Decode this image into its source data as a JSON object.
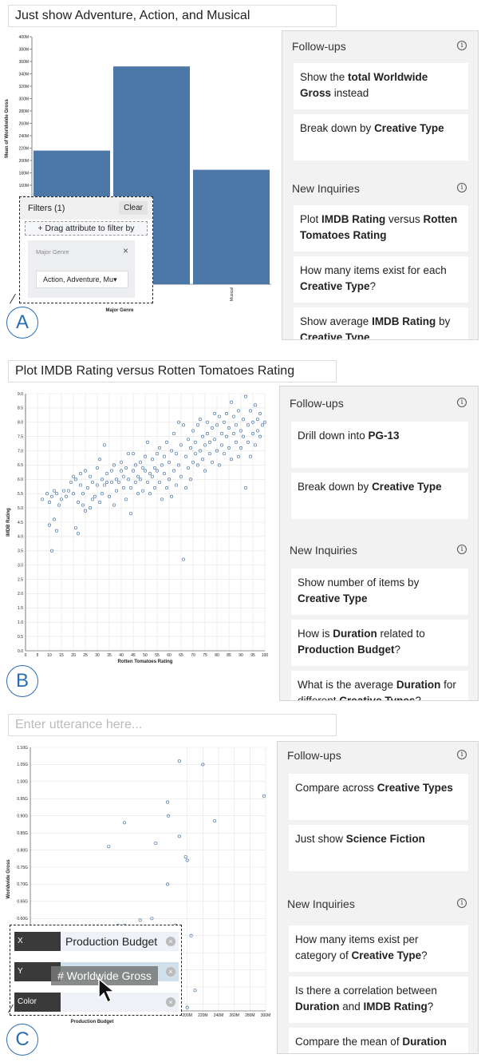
{
  "panelA": {
    "utterance": "Just show Adventure, Action, and Musical",
    "badge": "A",
    "filters": {
      "title": "Filters (1)",
      "clear": "Clear",
      "drag": "+ Drag attribute to filter by",
      "field": "Major Genre",
      "close": "×",
      "selected": "Action, Adventure, Mu",
      "caret": "▾"
    },
    "side": {
      "followups_title": "Follow-ups",
      "new_title": "New Inquiries",
      "info": "i",
      "followups": [
        [
          "Show the ",
          "total Worldwide Gross",
          " instead"
        ],
        [
          "Break down by ",
          "Creative Type",
          ""
        ]
      ],
      "inquiries": [
        [
          "Plot ",
          "IMDB Rating",
          " versus ",
          "Rotten Tomatoes Rating",
          ""
        ],
        [
          "How many items exist for each ",
          "Creative Type",
          "?"
        ],
        [
          "Show average ",
          "IMDB Rating",
          " by ",
          "Creative Type",
          ""
        ]
      ]
    }
  },
  "panelB": {
    "utterance": "Plot IMDB Rating versus Rotten Tomatoes Rating",
    "badge": "B",
    "side": {
      "followups_title": "Follow-ups",
      "new_title": "New Inquiries",
      "info": "i",
      "followups": [
        [
          "Drill down into ",
          "PG-13",
          ""
        ],
        [
          "Break down by ",
          "Creative Type",
          ""
        ]
      ],
      "inquiries": [
        [
          "Show number of items by ",
          "Creative Type",
          ""
        ],
        [
          "How is ",
          "Duration",
          " related to ",
          "Production Budget",
          "?"
        ],
        [
          "What is the average ",
          "Duration",
          " for different ",
          "Creative Types",
          "?"
        ]
      ]
    }
  },
  "panelC": {
    "utterance": "",
    "placeholder": "Enter utterance here...",
    "badge": "C",
    "encodings": {
      "x_key": "X",
      "x_val": "Production Budget",
      "y_key": "Y",
      "y_val": "",
      "color_key": "Color",
      "color_val": "",
      "dragging": "# Worldwide Gross",
      "remove": "×"
    },
    "side": {
      "followups_title": "Follow-ups",
      "new_title": "New Inquiries",
      "info": "i",
      "followups": [
        [
          "Compare across ",
          "Creative Types",
          ""
        ],
        [
          "Just show ",
          "Science Fiction",
          ""
        ]
      ],
      "inquiries": [
        [
          "How many items exist per category of ",
          "Creative Type",
          "?"
        ],
        [
          "Is there a correlation between ",
          "Duration",
          " and ",
          "IMDB Rating",
          "?"
        ],
        [
          "Compare the mean of ",
          "Duration",
          " across ",
          "Creative Types",
          ""
        ]
      ]
    }
  },
  "colors": {
    "bar": "#4c78a8",
    "point": "#4c78a8",
    "badge": "#2b6cb0"
  },
  "chart_data": [
    {
      "type": "bar",
      "categories": [
        "Action",
        "Adventure",
        "Musical"
      ],
      "values": [
        216000000,
        352000000,
        185000000
      ],
      "xlabel": "Major Genre",
      "ylabel": "Mean of Worldwide Gross",
      "ylim": [
        0,
        400000000
      ],
      "y_ticks": [
        "0M",
        "20M",
        "40M",
        "60M",
        "80M",
        "100M",
        "120M",
        "140M",
        "160M",
        "180M",
        "200M",
        "220M",
        "240M",
        "260M",
        "280M",
        "300M",
        "320M",
        "340M",
        "360M",
        "380M",
        "400M"
      ],
      "visible_x_tick_labels": [
        "Musical"
      ],
      "grid": false
    },
    {
      "type": "scatter",
      "xlabel": "Rotten Tomatoes Rating",
      "ylabel": "IMDB Rating",
      "xlim": [
        0,
        100
      ],
      "ylim": [
        0,
        9
      ],
      "x_ticks": [
        "0",
        "5",
        "10",
        "15",
        "20",
        "25",
        "30",
        "35",
        "40",
        "45",
        "50",
        "55",
        "60",
        "65",
        "70",
        "75",
        "80",
        "85",
        "90",
        "95",
        "100"
      ],
      "y_ticks": [
        "0.0",
        "0.5",
        "1.0",
        "1.5",
        "2.0",
        "2.5",
        "3.0",
        "3.5",
        "4.0",
        "4.5",
        "5.0",
        "5.5",
        "6.0",
        "6.5",
        "7.0",
        "7.5",
        "8.0",
        "8.5",
        "9.0"
      ],
      "grid": true,
      "points": [
        [
          7,
          5.3
        ],
        [
          9,
          5.5
        ],
        [
          10,
          5.2
        ],
        [
          10,
          4.4
        ],
        [
          11,
          5.4
        ],
        [
          11,
          3.5
        ],
        [
          12,
          5.6
        ],
        [
          12,
          4.6
        ],
        [
          13,
          4.2
        ],
        [
          13,
          5.5
        ],
        [
          14,
          5.1
        ],
        [
          15,
          5.3
        ],
        [
          16,
          5.6
        ],
        [
          17,
          5.4
        ],
        [
          18,
          5.6
        ],
        [
          19,
          5.9
        ],
        [
          20,
          6.1
        ],
        [
          20,
          5.5
        ],
        [
          21,
          6.0
        ],
        [
          21,
          4.3
        ],
        [
          22,
          5.2
        ],
        [
          22,
          4.1
        ],
        [
          23,
          6.2
        ],
        [
          23,
          5.8
        ],
        [
          24,
          5.5
        ],
        [
          24,
          5.1
        ],
        [
          25,
          4.9
        ],
        [
          25,
          6.3
        ],
        [
          26,
          5.7
        ],
        [
          27,
          5.0
        ],
        [
          27,
          6.1
        ],
        [
          28,
          5.3
        ],
        [
          28,
          5.9
        ],
        [
          29,
          5.4
        ],
        [
          30,
          6.4
        ],
        [
          30,
          5.8
        ],
        [
          31,
          6.7
        ],
        [
          31,
          5.2
        ],
        [
          32,
          6.0
        ],
        [
          32,
          5.5
        ],
        [
          33,
          7.2
        ],
        [
          33,
          5.8
        ],
        [
          34,
          5.9
        ],
        [
          34,
          6.2
        ],
        [
          35,
          5.4
        ],
        [
          36,
          5.9
        ],
        [
          36,
          6.3
        ],
        [
          37,
          5.1
        ],
        [
          37,
          6.5
        ],
        [
          38,
          6.0
        ],
        [
          38,
          5.6
        ],
        [
          39,
          5.9
        ],
        [
          40,
          6.3
        ],
        [
          40,
          6.6
        ],
        [
          41,
          5.7
        ],
        [
          41,
          6.1
        ],
        [
          42,
          6.4
        ],
        [
          42,
          5.3
        ],
        [
          43,
          6.0
        ],
        [
          43,
          6.9
        ],
        [
          44,
          4.8
        ],
        [
          44,
          5.7
        ],
        [
          45,
          6.3
        ],
        [
          45,
          6.9
        ],
        [
          46,
          5.9
        ],
        [
          46,
          6.5
        ],
        [
          47,
          6.1
        ],
        [
          47,
          5.5
        ],
        [
          48,
          6.6
        ],
        [
          48,
          6.0
        ],
        [
          49,
          6.4
        ],
        [
          49,
          5.6
        ],
        [
          50,
          6.3
        ],
        [
          50,
          6.8
        ],
        [
          51,
          5.9
        ],
        [
          51,
          7.3
        ],
        [
          52,
          6.2
        ],
        [
          52,
          5.5
        ],
        [
          53,
          6.7
        ],
        [
          53,
          6.1
        ],
        [
          54,
          6.4
        ],
        [
          54,
          5.7
        ],
        [
          55,
          6.9
        ],
        [
          55,
          6.3
        ],
        [
          56,
          5.9
        ],
        [
          56,
          7.1
        ],
        [
          57,
          6.5
        ],
        [
          57,
          5.3
        ],
        [
          58,
          6.8
        ],
        [
          58,
          6.2
        ],
        [
          59,
          5.7
        ],
        [
          59,
          7.3
        ],
        [
          60,
          6.0
        ],
        [
          60,
          6.6
        ],
        [
          61,
          7.0
        ],
        [
          61,
          5.4
        ],
        [
          62,
          6.3
        ],
        [
          62,
          7.6
        ],
        [
          63,
          6.9
        ],
        [
          63,
          5.8
        ],
        [
          64,
          8.0
        ],
        [
          64,
          6.5
        ],
        [
          65,
          7.2
        ],
        [
          65,
          6.1
        ],
        [
          66,
          3.2
        ],
        [
          66,
          7.9
        ],
        [
          67,
          6.8
        ],
        [
          67,
          5.7
        ],
        [
          68,
          7.4
        ],
        [
          68,
          6.4
        ],
        [
          69,
          7.1
        ],
        [
          69,
          6.0
        ],
        [
          70,
          7.7
        ],
        [
          70,
          6.6
        ],
        [
          71,
          7.3
        ],
        [
          71,
          6.9
        ],
        [
          72,
          7.9
        ],
        [
          72,
          6.5
        ],
        [
          73,
          8.1
        ],
        [
          73,
          7.0
        ],
        [
          74,
          6.7
        ],
        [
          74,
          7.5
        ],
        [
          75,
          7.2
        ],
        [
          75,
          6.3
        ],
        [
          76,
          8.0
        ],
        [
          76,
          7.6
        ],
        [
          77,
          6.9
        ],
        [
          77,
          7.3
        ],
        [
          78,
          7.8
        ],
        [
          78,
          6.6
        ],
        [
          79,
          8.3
        ],
        [
          79,
          7.4
        ],
        [
          80,
          7.0
        ],
        [
          80,
          7.9
        ],
        [
          81,
          8.2
        ],
        [
          81,
          6.5
        ],
        [
          82,
          7.6
        ],
        [
          82,
          7.2
        ],
        [
          83,
          8.0
        ],
        [
          83,
          6.9
        ],
        [
          84,
          7.5
        ],
        [
          84,
          8.3
        ],
        [
          85,
          7.1
        ],
        [
          85,
          7.8
        ],
        [
          86,
          8.7
        ],
        [
          86,
          6.7
        ],
        [
          87,
          7.6
        ],
        [
          87,
          8.2
        ],
        [
          88,
          7.3
        ],
        [
          88,
          7.9
        ],
        [
          89,
          8.4
        ],
        [
          89,
          6.8
        ],
        [
          90,
          7.7
        ],
        [
          90,
          7.1
        ],
        [
          91,
          8.1
        ],
        [
          91,
          7.5
        ],
        [
          92,
          8.9
        ],
        [
          92,
          5.7
        ],
        [
          93,
          7.9
        ],
        [
          93,
          7.3
        ],
        [
          94,
          8.4
        ],
        [
          94,
          6.8
        ],
        [
          95,
          7.6
        ],
        [
          95,
          8.0
        ],
        [
          96,
          7.2
        ],
        [
          96,
          8.6
        ],
        [
          97,
          7.7
        ],
        [
          97,
          8.1
        ],
        [
          98,
          8.3
        ],
        [
          98,
          7.5
        ],
        [
          99,
          7.9
        ],
        [
          100,
          8.0
        ]
      ]
    },
    {
      "type": "scatter",
      "xlabel": "Production Budget",
      "ylabel": "Worldwide Gross",
      "ylim": [
        0,
        1100000000
      ],
      "xlim": [
        0,
        300000000
      ],
      "y_ticks": [
        "0.35G",
        "0.40G",
        "0.45G",
        "0.50G",
        "0.55G",
        "0.60G",
        "0.65G",
        "0.70G",
        "0.75G",
        "0.80G",
        "0.85G",
        "0.90G",
        "0.95G",
        "1.00G",
        "1.05G",
        "1.10G"
      ],
      "x_ticks": [
        "200M",
        "220M",
        "240M",
        "260M",
        "280M",
        "300M"
      ],
      "grid": true,
      "points": [
        [
          190000000,
          1060000000
        ],
        [
          220000000,
          1050000000
        ],
        [
          298000000,
          958000000
        ],
        [
          175000000,
          940000000
        ],
        [
          176000000,
          900000000
        ],
        [
          120000000,
          880000000
        ],
        [
          235000000,
          885000000
        ],
        [
          190000000,
          840000000
        ],
        [
          198000000,
          780000000
        ],
        [
          200000000,
          770000000
        ],
        [
          160000000,
          820000000
        ],
        [
          100000000,
          810000000
        ],
        [
          175000000,
          700000000
        ],
        [
          140000000,
          595000000
        ],
        [
          155000000,
          600000000
        ],
        [
          185000000,
          580000000
        ],
        [
          112000000,
          580000000
        ],
        [
          120000000,
          580000000
        ],
        [
          170000000,
          555000000
        ],
        [
          150000000,
          550000000
        ],
        [
          205000000,
          550000000
        ],
        [
          112000000,
          500000000
        ],
        [
          125000000,
          440000000
        ],
        [
          100000000,
          420000000
        ],
        [
          140000000,
          430000000
        ],
        [
          155000000,
          430000000
        ],
        [
          160000000,
          470000000
        ],
        [
          165000000,
          440000000
        ],
        [
          170000000,
          380000000
        ],
        [
          180000000,
          400000000
        ],
        [
          190000000,
          395000000
        ],
        [
          210000000,
          390000000
        ],
        [
          130000000,
          380000000
        ],
        [
          145000000,
          390000000
        ],
        [
          115000000,
          360000000
        ],
        [
          120000000,
          340000000
        ],
        [
          135000000,
          370000000
        ],
        [
          200000000,
          340000000
        ]
      ]
    }
  ]
}
